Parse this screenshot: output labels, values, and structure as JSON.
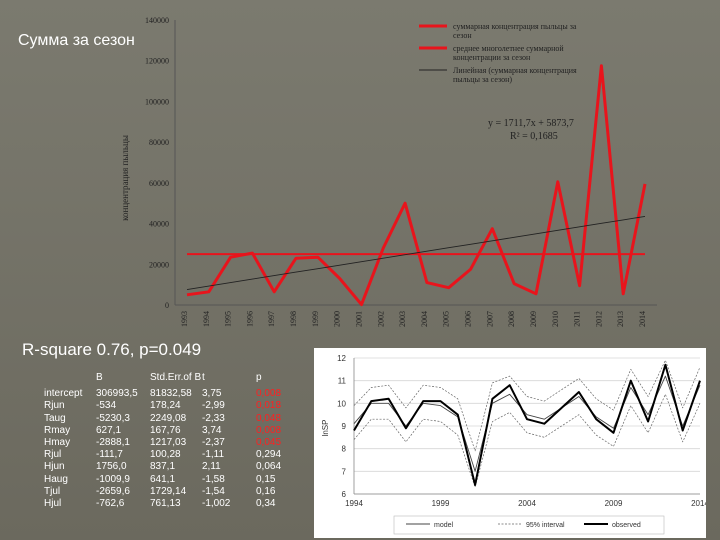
{
  "slide": {
    "title": "Сумма за сезон",
    "r2_text": "R-square 0.76,  p=0.049"
  },
  "colors": {
    "red": "#e8141c",
    "background": "#6f6d62",
    "highlight": "#ff2020"
  },
  "stats": {
    "headers": [
      "",
      "B",
      "Std.Err.of B",
      "t",
      "p"
    ],
    "rows": [
      [
        "intercept",
        "306993,5",
        "81832,58",
        "3,75",
        "0,008"
      ],
      [
        "Rjun",
        "-534",
        "178,24",
        "-2,99",
        "0,018"
      ],
      [
        "Taug",
        "-5230,3",
        "2249,08",
        "-2,33",
        "0,048"
      ],
      [
        "Rmay",
        "627,1",
        "167,76",
        "3,74",
        "0,008"
      ],
      [
        "Hmay",
        "-2888,1",
        "1217,03",
        "-2,37",
        "0,045"
      ],
      [
        "Rjul",
        "-111,7",
        "100,28",
        "-1,11",
        "0,294"
      ],
      [
        "Hjun",
        "1756,0",
        "837,1",
        "2,11",
        "0,064"
      ],
      [
        "Haug",
        "-1009,9",
        "641,1",
        "-1,58",
        "0,15"
      ],
      [
        "Tjul",
        "-2659,6",
        "1729,14",
        "-1,54",
        "0,16"
      ],
      [
        "Hjul",
        "-762,6",
        "761,13",
        "-1,002",
        "0,34"
      ]
    ],
    "highlight_rows": 5
  },
  "chart_data": [
    {
      "type": "line",
      "title": "",
      "ylabel": "концентрация пыльцы",
      "ylim": [
        0,
        140000
      ],
      "yticks": [
        0,
        20000,
        40000,
        60000,
        80000,
        100000,
        120000,
        140000
      ],
      "x": [
        "1993",
        "1994",
        "1995",
        "1996",
        "1997",
        "1998",
        "1999",
        "2000",
        "2001",
        "2002",
        "2003",
        "2004",
        "2005",
        "2006",
        "2007",
        "2008",
        "2009",
        "2010",
        "2011",
        "2012",
        "2013",
        "2014"
      ],
      "series": [
        {
          "name": "суммарная концентрация пыльцы за сезон",
          "color": "#e8141c",
          "values": [
            5000,
            6500,
            23500,
            25500,
            6500,
            23000,
            23500,
            13000,
            200,
            28000,
            50000,
            11000,
            8500,
            17500,
            37500,
            10500,
            5500,
            60500,
            9500,
            117500,
            5500,
            59500
          ]
        },
        {
          "name": "среднее многолетнее суммарной концентрации за сезон",
          "color": "#e8141c",
          "values": [
            25000,
            25000,
            25000,
            25000,
            25000,
            25000,
            25000,
            25000,
            25000,
            25000,
            25000,
            25000,
            25000,
            25000,
            25000,
            25000,
            25000,
            25000,
            25000,
            25000,
            25000,
            25000
          ]
        },
        {
          "name": "Линейная (суммарная концентрация пыльцы за сезон)",
          "color": "#222222",
          "values": [
            7585,
            9297,
            11009,
            12721,
            14432,
            16144,
            17856,
            19568,
            21280,
            22992,
            24703,
            26415,
            28127,
            29839,
            31551,
            33262,
            34974,
            36686,
            38398,
            40110,
            41822,
            43533
          ]
        }
      ],
      "annotations": [
        "y = 1711,7x + 5873,7",
        "R² = 0,1685"
      ]
    },
    {
      "type": "line",
      "ylabel": "lnSP",
      "ylim": [
        6,
        12
      ],
      "yticks": [
        6,
        7,
        8,
        9,
        10,
        11,
        12
      ],
      "xticks": [
        "1994",
        "1999",
        "2004",
        "2009",
        "2014"
      ],
      "x": [
        1994,
        1995,
        1996,
        1997,
        1998,
        1999,
        2000,
        2001,
        2002,
        2003,
        2004,
        2005,
        2006,
        2007,
        2008,
        2009,
        2010,
        2011,
        2012,
        2013,
        2014
      ],
      "legend": [
        "model",
        "95% interval",
        "observed"
      ],
      "series": [
        {
          "name": "observed",
          "values": [
            8.8,
            10.1,
            10.2,
            8.9,
            10.1,
            10.1,
            9.5,
            6.4,
            10.2,
            10.8,
            9.3,
            9.1,
            9.8,
            10.5,
            9.3,
            8.7,
            11.0,
            9.2,
            11.7,
            8.8,
            11.0
          ]
        },
        {
          "name": "model",
          "values": [
            9.1,
            10.0,
            10.0,
            9.0,
            10.0,
            9.9,
            9.4,
            7.0,
            10.0,
            10.4,
            9.5,
            9.3,
            9.8,
            10.3,
            9.4,
            8.9,
            10.7,
            9.5,
            11.2,
            9.0,
            10.8
          ]
        },
        {
          "name": "95% interval upper",
          "values": [
            9.9,
            10.7,
            10.8,
            9.8,
            10.8,
            10.7,
            10.2,
            7.9,
            10.9,
            11.2,
            10.3,
            10.1,
            10.6,
            11.1,
            10.2,
            9.7,
            11.5,
            10.3,
            11.9,
            9.8,
            11.6
          ]
        },
        {
          "name": "95% interval lower",
          "values": [
            8.4,
            9.3,
            9.3,
            8.3,
            9.3,
            9.2,
            8.6,
            6.3,
            9.2,
            9.6,
            8.7,
            8.5,
            9.0,
            9.5,
            8.6,
            8.1,
            9.9,
            8.7,
            10.4,
            8.3,
            10.0
          ]
        }
      ]
    }
  ]
}
